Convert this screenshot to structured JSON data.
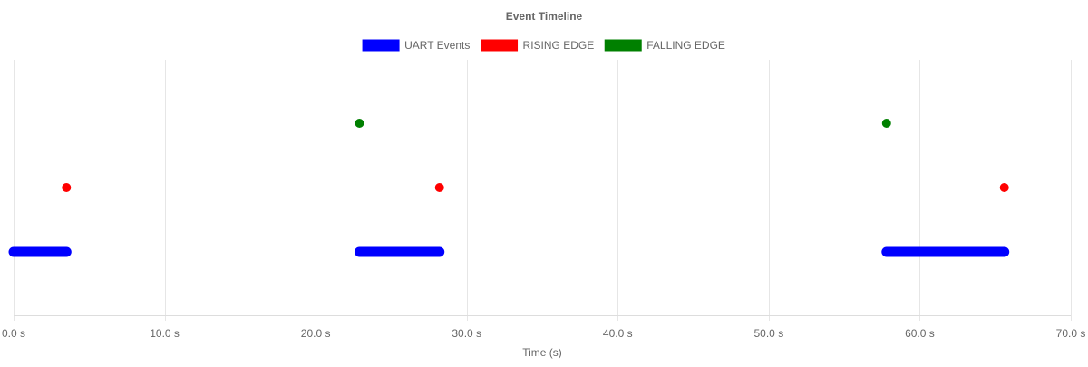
{
  "chart_data": {
    "type": "timeline",
    "title": "Event Timeline",
    "xlabel": "Time (s)",
    "ylabel": "",
    "xlim": [
      0,
      70
    ],
    "x_ticks": [
      0,
      10,
      20,
      30,
      40,
      50,
      60,
      70
    ],
    "x_tick_labels": [
      "0.0 s",
      "10.0 s",
      "20.0 s",
      "30.0 s",
      "40.0 s",
      "50.0 s",
      "60.0 s",
      "70.0 s"
    ],
    "grid": true,
    "legend_position": "top",
    "series": [
      {
        "name": "UART Events",
        "color": "#0000ff",
        "mark": "span",
        "row": 1,
        "intervals": [
          [
            0.0,
            3.5
          ],
          [
            22.9,
            28.2
          ],
          [
            57.8,
            65.6
          ]
        ]
      },
      {
        "name": "RISING EDGE",
        "color": "#ff0000",
        "mark": "point",
        "row": 2,
        "points": [
          3.5,
          28.2,
          65.6
        ]
      },
      {
        "name": "FALLING EDGE",
        "color": "#008000",
        "mark": "point",
        "row": 3,
        "points": [
          22.9,
          57.8
        ]
      }
    ]
  }
}
